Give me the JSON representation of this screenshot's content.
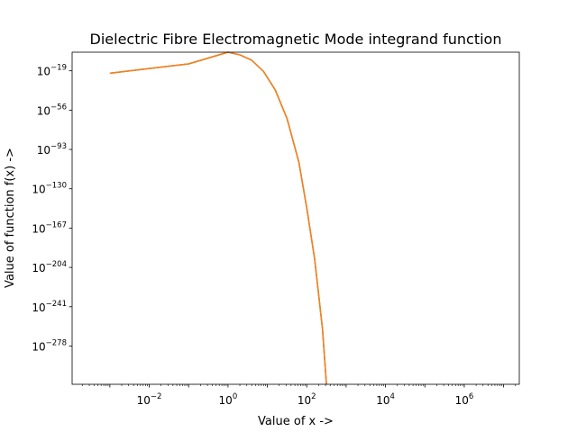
{
  "chart_data": {
    "type": "line",
    "title": "Dielectric Fibre Electromagnetic Mode integrand function",
    "xlabel": "Value of x ->",
    "ylabel": "Value of function f(x) ->",
    "xscale": "log",
    "yscale": "log",
    "xlim": [
      0.00011,
      25000000
    ],
    "ylim_log10": [
      -314,
      -1.5
    ],
    "grid": false,
    "legend": "none",
    "x_ticks": [
      {
        "base": "10",
        "exp": "−2",
        "value": 0.01
      },
      {
        "base": "10",
        "exp": "0",
        "value": 1
      },
      {
        "base": "10",
        "exp": "2",
        "value": 100
      },
      {
        "base": "10",
        "exp": "4",
        "value": 10000
      },
      {
        "base": "10",
        "exp": "6",
        "value": 1000000
      }
    ],
    "y_ticks": [
      {
        "base": "10",
        "exp": "−19",
        "log10": -19
      },
      {
        "base": "10",
        "exp": "−56",
        "log10": -56
      },
      {
        "base": "10",
        "exp": "−93",
        "log10": -93
      },
      {
        "base": "10",
        "exp": "−130",
        "log10": -130
      },
      {
        "base": "10",
        "exp": "−167",
        "log10": -167
      },
      {
        "base": "10",
        "exp": "−204",
        "log10": -204
      },
      {
        "base": "10",
        "exp": "−241",
        "log10": -241
      },
      {
        "base": "10",
        "exp": "−278",
        "log10": -278
      }
    ],
    "series": [
      {
        "color": "#1f77b4",
        "points_log10": [
          [
            -3,
            -21.3
          ],
          [
            -2,
            -16.9
          ],
          [
            -1,
            -12.5
          ],
          [
            0,
            -1.5
          ],
          [
            0.3,
            -4.0
          ],
          [
            0.6,
            -9.0
          ],
          [
            0.9,
            -19.5
          ],
          [
            1.2,
            -37.0
          ],
          [
            1.5,
            -64.0
          ],
          [
            1.8,
            -105.0
          ],
          [
            2.0,
            -148.0
          ],
          [
            2.2,
            -196.0
          ],
          [
            2.4,
            -262.0
          ],
          [
            2.5,
            -314.0
          ]
        ]
      },
      {
        "color": "#ff7f0e",
        "points_log10": [
          [
            -3,
            -21.3
          ],
          [
            -2,
            -16.9
          ],
          [
            -1,
            -12.5
          ],
          [
            0,
            -1.5
          ],
          [
            0.3,
            -4.0
          ],
          [
            0.6,
            -9.0
          ],
          [
            0.9,
            -19.5
          ],
          [
            1.2,
            -37.0
          ],
          [
            1.5,
            -64.0
          ],
          [
            1.8,
            -105.0
          ],
          [
            2.0,
            -148.0
          ],
          [
            2.2,
            -196.0
          ],
          [
            2.4,
            -262.0
          ],
          [
            2.5,
            -314.0
          ]
        ]
      }
    ]
  }
}
